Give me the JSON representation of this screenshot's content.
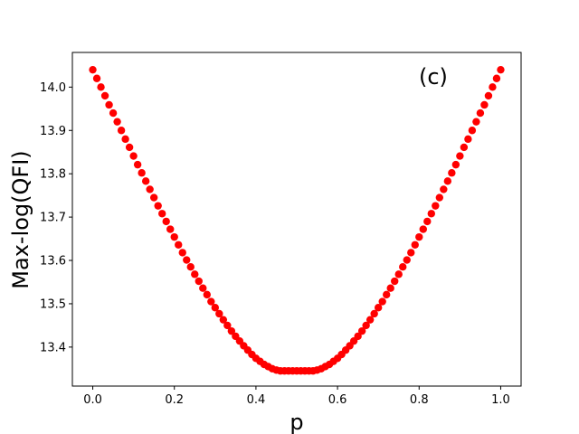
{
  "chart_data": {
    "type": "scatter",
    "title": "",
    "xlabel": "p",
    "ylabel": "Max-log(QFI)",
    "annotation": "(c)",
    "xlim": [
      -0.05,
      1.05
    ],
    "ylim": [
      13.31,
      14.08
    ],
    "xticks": [
      0.0,
      0.2,
      0.4,
      0.6,
      0.8,
      1.0
    ],
    "xtick_labels": [
      "0.0",
      "0.2",
      "0.4",
      "0.6",
      "0.8",
      "1.0"
    ],
    "yticks": [
      13.4,
      13.5,
      13.6,
      13.7,
      13.8,
      13.9,
      14.0
    ],
    "ytick_labels": [
      "13.4",
      "13.5",
      "13.6",
      "13.7",
      "13.8",
      "13.9",
      "14.0"
    ],
    "grid": false,
    "marker_color": "#ff0000",
    "series": [
      {
        "x": [
          0.0,
          0.01,
          0.02,
          0.03,
          0.04,
          0.05,
          0.06,
          0.07,
          0.08,
          0.09,
          0.1,
          0.11,
          0.12,
          0.13,
          0.14,
          0.15,
          0.16,
          0.17,
          0.18,
          0.19,
          0.2,
          0.21,
          0.22,
          0.23,
          0.24,
          0.25,
          0.26,
          0.27,
          0.28,
          0.29,
          0.3,
          0.31,
          0.32,
          0.33,
          0.34,
          0.35,
          0.36,
          0.37,
          0.38,
          0.39,
          0.4,
          0.41,
          0.42,
          0.43,
          0.44,
          0.45,
          0.46,
          0.47,
          0.48,
          0.49,
          0.5,
          0.51,
          0.52,
          0.53,
          0.54,
          0.55,
          0.56,
          0.57,
          0.58,
          0.59,
          0.6,
          0.61,
          0.62,
          0.63,
          0.64,
          0.65,
          0.66,
          0.67,
          0.68,
          0.69,
          0.7,
          0.71,
          0.72,
          0.73,
          0.74,
          0.75,
          0.76,
          0.77,
          0.78,
          0.79,
          0.8,
          0.81,
          0.82,
          0.83,
          0.84,
          0.85,
          0.86,
          0.87,
          0.88,
          0.89,
          0.9,
          0.91,
          0.92,
          0.93,
          0.94,
          0.95,
          0.96,
          0.97,
          0.98,
          0.99,
          1.0
        ],
        "y": [
          14.04,
          14.02,
          14.0,
          13.98,
          13.959,
          13.94,
          13.92,
          13.9,
          13.88,
          13.861,
          13.841,
          13.821,
          13.802,
          13.783,
          13.764,
          13.745,
          13.726,
          13.708,
          13.69,
          13.672,
          13.654,
          13.636,
          13.618,
          13.601,
          13.585,
          13.568,
          13.552,
          13.536,
          13.521,
          13.505,
          13.491,
          13.477,
          13.463,
          13.45,
          13.437,
          13.425,
          13.414,
          13.403,
          13.393,
          13.383,
          13.374,
          13.367,
          13.36,
          13.355,
          13.35,
          13.347,
          13.345,
          13.345,
          13.345,
          13.345,
          13.345,
          13.345,
          13.345,
          13.345,
          13.345,
          13.347,
          13.35,
          13.355,
          13.36,
          13.367,
          13.374,
          13.383,
          13.393,
          13.403,
          13.414,
          13.425,
          13.437,
          13.45,
          13.463,
          13.477,
          13.491,
          13.505,
          13.521,
          13.536,
          13.552,
          13.568,
          13.585,
          13.601,
          13.618,
          13.636,
          13.654,
          13.672,
          13.69,
          13.708,
          13.726,
          13.745,
          13.764,
          13.783,
          13.802,
          13.821,
          13.841,
          13.861,
          13.88,
          13.9,
          13.92,
          13.94,
          13.959,
          13.98,
          14.0,
          14.02,
          14.04
        ]
      }
    ]
  }
}
